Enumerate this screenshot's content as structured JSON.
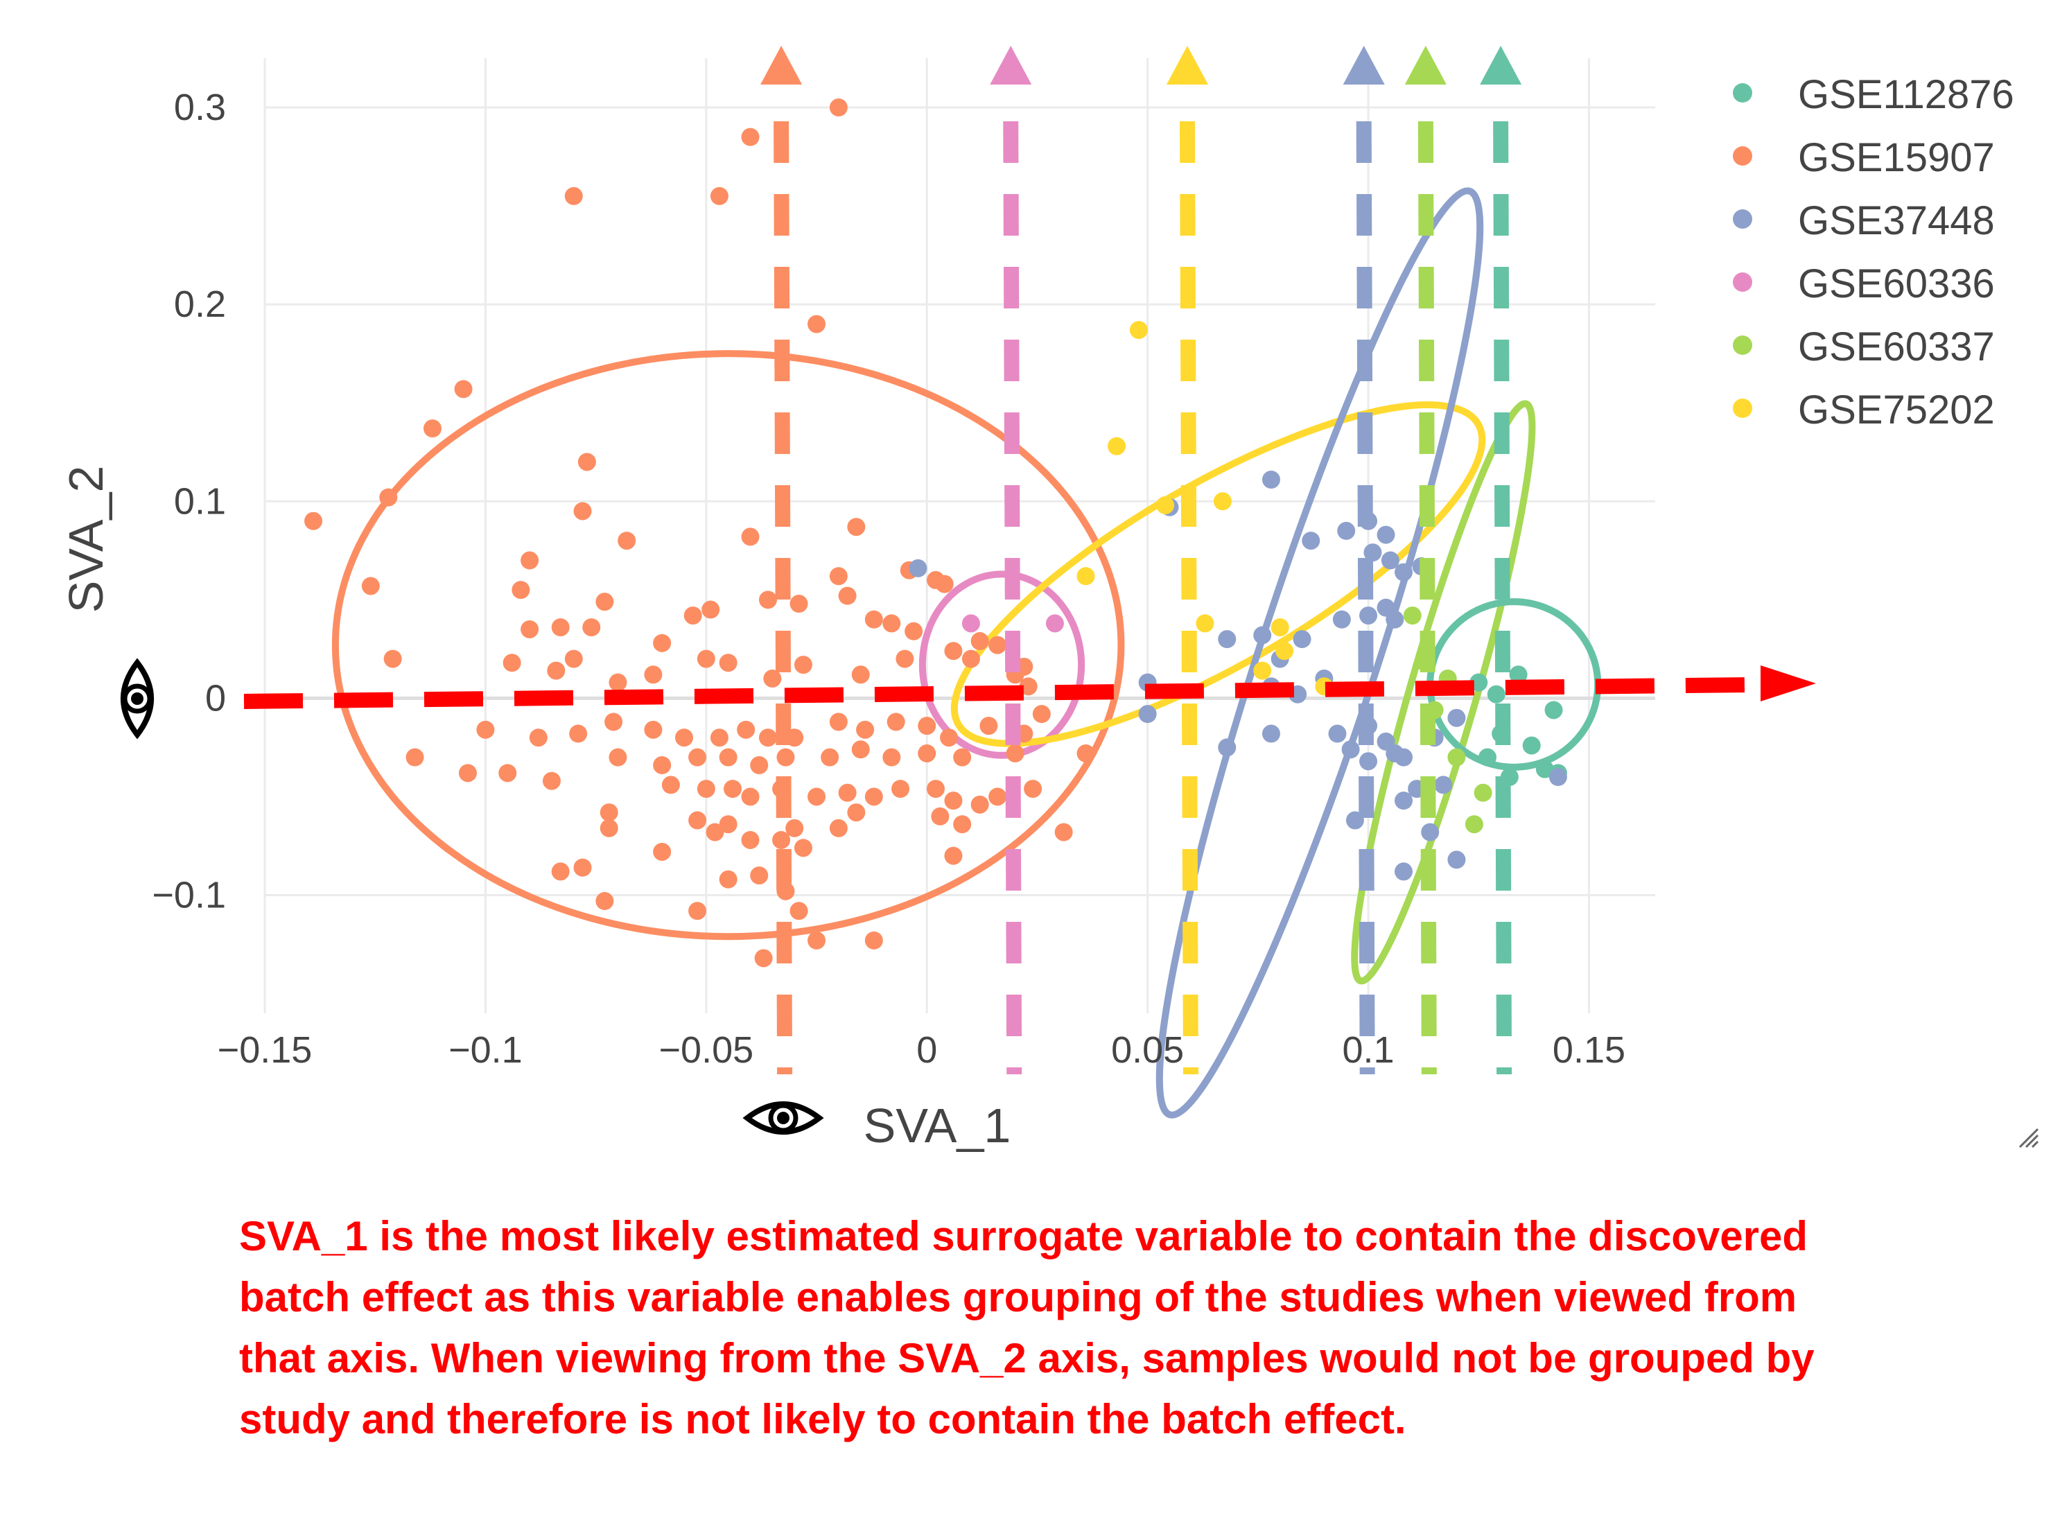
{
  "chart_data": {
    "type": "scatter",
    "xlabel": "SVA_1",
    "ylabel": "SVA_2",
    "xlim": [
      -0.15,
      0.165
    ],
    "ylim": [
      -0.16,
      0.325
    ],
    "x_ticks": [
      -0.15,
      -0.1,
      -0.05,
      0,
      0.05,
      0.1,
      0.15
    ],
    "x_tick_labels": [
      "−0.15",
      "−0.1",
      "−0.05",
      "0",
      "0.05",
      "0.1",
      "0.15"
    ],
    "y_ticks": [
      -0.1,
      0,
      0.1,
      0.2,
      0.3
    ],
    "y_tick_labels": [
      "−0.1",
      "0",
      "0.1",
      "0.2",
      "0.3"
    ],
    "grid": true,
    "legend_position": "top-right",
    "series": [
      {
        "name": "GSE112876",
        "color": "#66c2a5",
        "points": [
          [
            0.134,
            0.012
          ],
          [
            0.142,
            -0.006
          ],
          [
            0.13,
            -0.018
          ],
          [
            0.137,
            -0.024
          ],
          [
            0.127,
            -0.03
          ],
          [
            0.14,
            -0.036
          ],
          [
            0.143,
            -0.038
          ],
          [
            0.132,
            -0.04
          ],
          [
            0.125,
            0.008
          ],
          [
            0.129,
            0.002
          ]
        ]
      },
      {
        "name": "GSE15907",
        "color": "#fc8d62",
        "points": [
          [
            -0.02,
            0.3
          ],
          [
            -0.04,
            0.285
          ],
          [
            -0.08,
            0.255
          ],
          [
            -0.047,
            0.255
          ],
          [
            -0.025,
            0.19
          ],
          [
            -0.105,
            0.157
          ],
          [
            -0.112,
            0.137
          ],
          [
            -0.139,
            0.09
          ],
          [
            -0.122,
            0.102
          ],
          [
            -0.077,
            0.12
          ],
          [
            -0.078,
            0.095
          ],
          [
            -0.068,
            0.08
          ],
          [
            -0.04,
            0.082
          ],
          [
            -0.016,
            0.087
          ],
          [
            -0.126,
            0.057
          ],
          [
            -0.09,
            0.07
          ],
          [
            -0.092,
            0.055
          ],
          [
            -0.073,
            0.049
          ],
          [
            -0.09,
            0.035
          ],
          [
            -0.083,
            0.036
          ],
          [
            -0.076,
            0.036
          ],
          [
            -0.06,
            0.028
          ],
          [
            -0.053,
            0.042
          ],
          [
            -0.049,
            0.045
          ],
          [
            -0.036,
            0.05
          ],
          [
            -0.029,
            0.048
          ],
          [
            -0.018,
            0.052
          ],
          [
            -0.02,
            0.062
          ],
          [
            -0.004,
            0.065
          ],
          [
            0.002,
            0.06
          ],
          [
            0.004,
            0.058
          ],
          [
            -0.012,
            0.04
          ],
          [
            -0.008,
            0.038
          ],
          [
            -0.003,
            0.034
          ],
          [
            -0.121,
            0.02
          ],
          [
            -0.08,
            0.02
          ],
          [
            -0.084,
            0.014
          ],
          [
            -0.094,
            0.018
          ],
          [
            -0.07,
            0.008
          ],
          [
            -0.062,
            0.012
          ],
          [
            -0.05,
            0.02
          ],
          [
            -0.045,
            0.018
          ],
          [
            -0.035,
            0.01
          ],
          [
            -0.028,
            0.017
          ],
          [
            -0.015,
            0.012
          ],
          [
            -0.005,
            0.02
          ],
          [
            0.006,
            0.024
          ],
          [
            0.012,
            0.029
          ],
          [
            0.016,
            0.027
          ],
          [
            0.01,
            0.02
          ],
          [
            0.022,
            0.016
          ],
          [
            0.02,
            0.012
          ],
          [
            0.023,
            0.006
          ],
          [
            -0.1,
            -0.016
          ],
          [
            -0.088,
            -0.02
          ],
          [
            -0.079,
            -0.018
          ],
          [
            -0.071,
            -0.012
          ],
          [
            -0.062,
            -0.016
          ],
          [
            -0.055,
            -0.02
          ],
          [
            -0.047,
            -0.02
          ],
          [
            -0.041,
            -0.016
          ],
          [
            -0.036,
            -0.02
          ],
          [
            -0.03,
            -0.02
          ],
          [
            -0.02,
            -0.012
          ],
          [
            -0.014,
            -0.016
          ],
          [
            -0.007,
            -0.012
          ],
          [
            0.0,
            -0.014
          ],
          [
            0.005,
            -0.02
          ],
          [
            0.014,
            -0.014
          ],
          [
            0.022,
            -0.018
          ],
          [
            -0.116,
            -0.03
          ],
          [
            -0.104,
            -0.038
          ],
          [
            -0.095,
            -0.038
          ],
          [
            -0.085,
            -0.042
          ],
          [
            -0.07,
            -0.03
          ],
          [
            -0.06,
            -0.034
          ],
          [
            -0.052,
            -0.03
          ],
          [
            -0.045,
            -0.03
          ],
          [
            -0.038,
            -0.034
          ],
          [
            -0.032,
            -0.03
          ],
          [
            -0.022,
            -0.03
          ],
          [
            -0.015,
            -0.026
          ],
          [
            -0.008,
            -0.03
          ],
          [
            0.0,
            -0.028
          ],
          [
            0.008,
            -0.03
          ],
          [
            0.02,
            -0.028
          ],
          [
            0.036,
            -0.028
          ],
          [
            -0.058,
            -0.044
          ],
          [
            -0.05,
            -0.046
          ],
          [
            -0.044,
            -0.046
          ],
          [
            -0.04,
            -0.05
          ],
          [
            -0.033,
            -0.046
          ],
          [
            -0.025,
            -0.05
          ],
          [
            -0.018,
            -0.048
          ],
          [
            -0.012,
            -0.05
          ],
          [
            -0.006,
            -0.046
          ],
          [
            0.002,
            -0.046
          ],
          [
            0.006,
            -0.052
          ],
          [
            0.012,
            -0.054
          ],
          [
            0.016,
            -0.05
          ],
          [
            0.024,
            -0.046
          ],
          [
            -0.072,
            -0.058
          ],
          [
            -0.052,
            -0.062
          ],
          [
            -0.045,
            -0.064
          ],
          [
            -0.03,
            -0.066
          ],
          [
            -0.02,
            -0.066
          ],
          [
            -0.016,
            -0.058
          ],
          [
            0.003,
            -0.06
          ],
          [
            0.008,
            -0.064
          ],
          [
            -0.072,
            -0.066
          ],
          [
            -0.048,
            -0.068
          ],
          [
            -0.04,
            -0.072
          ],
          [
            -0.033,
            -0.072
          ],
          [
            -0.06,
            -0.078
          ],
          [
            -0.028,
            -0.076
          ],
          [
            -0.083,
            -0.088
          ],
          [
            -0.078,
            -0.086
          ],
          [
            -0.045,
            -0.092
          ],
          [
            -0.038,
            -0.09
          ],
          [
            -0.032,
            -0.098
          ],
          [
            -0.073,
            -0.103
          ],
          [
            -0.052,
            -0.108
          ],
          [
            -0.029,
            -0.108
          ],
          [
            -0.025,
            -0.123
          ],
          [
            -0.012,
            -0.123
          ],
          [
            -0.037,
            -0.132
          ],
          [
            0.006,
            -0.08
          ],
          [
            0.031,
            -0.068
          ],
          [
            0.026,
            -0.008
          ]
        ]
      },
      {
        "name": "GSE37448",
        "color": "#8da0cb",
        "points": [
          [
            -0.002,
            0.066
          ],
          [
            0.078,
            0.111
          ],
          [
            0.055,
            0.097
          ],
          [
            0.1,
            0.09
          ],
          [
            0.095,
            0.085
          ],
          [
            0.104,
            0.083
          ],
          [
            0.087,
            0.08
          ],
          [
            0.101,
            0.074
          ],
          [
            0.105,
            0.07
          ],
          [
            0.112,
            0.067
          ],
          [
            0.108,
            0.064
          ],
          [
            0.104,
            0.046
          ],
          [
            0.106,
            0.04
          ],
          [
            0.1,
            0.042
          ],
          [
            0.094,
            0.04
          ],
          [
            0.085,
            0.03
          ],
          [
            0.076,
            0.032
          ],
          [
            0.068,
            0.03
          ],
          [
            0.08,
            0.02
          ],
          [
            0.09,
            0.01
          ],
          [
            0.084,
            0.002
          ],
          [
            0.078,
            0.006
          ],
          [
            0.05,
            0.008
          ],
          [
            0.05,
            -0.008
          ],
          [
            0.1,
            -0.014
          ],
          [
            0.093,
            -0.018
          ],
          [
            0.078,
            -0.018
          ],
          [
            0.068,
            -0.025
          ],
          [
            0.104,
            -0.022
          ],
          [
            0.1,
            -0.032
          ],
          [
            0.096,
            -0.026
          ],
          [
            0.106,
            -0.028
          ],
          [
            0.108,
            -0.03
          ],
          [
            0.12,
            -0.01
          ],
          [
            0.115,
            -0.02
          ],
          [
            0.108,
            -0.052
          ],
          [
            0.111,
            -0.046
          ],
          [
            0.117,
            -0.044
          ],
          [
            0.097,
            -0.062
          ],
          [
            0.114,
            -0.068
          ],
          [
            0.12,
            -0.082
          ],
          [
            0.108,
            -0.088
          ],
          [
            0.143,
            -0.04
          ]
        ]
      },
      {
        "name": "GSE60336",
        "color": "#e78ac3",
        "points": [
          [
            0.01,
            0.038
          ],
          [
            0.029,
            0.038
          ]
        ]
      },
      {
        "name": "GSE60337",
        "color": "#a6d854",
        "points": [
          [
            0.11,
            0.042
          ],
          [
            0.113,
            0.018
          ],
          [
            0.118,
            0.01
          ],
          [
            0.115,
            -0.006
          ],
          [
            0.12,
            -0.03
          ],
          [
            0.126,
            -0.048
          ],
          [
            0.124,
            -0.064
          ]
        ]
      },
      {
        "name": "GSE75202",
        "color": "#ffd92f",
        "points": [
          [
            0.048,
            0.187
          ],
          [
            0.043,
            0.128
          ],
          [
            0.054,
            0.098
          ],
          [
            0.067,
            0.1
          ],
          [
            0.036,
            0.062
          ],
          [
            0.063,
            0.038
          ],
          [
            0.08,
            0.036
          ],
          [
            0.081,
            0.024
          ],
          [
            0.076,
            0.014
          ],
          [
            0.09,
            0.006
          ]
        ]
      }
    ],
    "ellipses": [
      {
        "color": "#fc8d62",
        "center": [
          -0.045,
          0.027
        ],
        "rx": 0.089,
        "ry": 0.148
      },
      {
        "color": "#e78ac3",
        "center": [
          0.017,
          0.017
        ],
        "rx": 0.018,
        "ry": 0.046
      },
      {
        "color": "#ffd92f",
        "center": [
          0.066,
          0.063
        ],
        "rx": 0.068,
        "ry": 0.046,
        "angle": 30
      },
      {
        "color": "#8da0cb",
        "center": [
          0.089,
          0.023
        ],
        "rx": 0.11,
        "ry": 0.03,
        "angle": 72
      },
      {
        "color": "#a6d854",
        "center": [
          0.117,
          0.003
        ],
        "rx": 0.068,
        "ry": 0.017,
        "angle": 74
      },
      {
        "color": "#66c2a5",
        "center": [
          0.133,
          0.007
        ],
        "rx": 0.019,
        "ry": 0.042
      }
    ],
    "marker_lines": [
      {
        "color": "#fc8d62",
        "x": -0.033
      },
      {
        "color": "#e78ac3",
        "x": 0.019
      },
      {
        "color": "#ffd92f",
        "x": 0.059
      },
      {
        "color": "#8da0cb",
        "x": 0.099
      },
      {
        "color": "#a6d854",
        "x": 0.113
      },
      {
        "color": "#66c2a5",
        "x": 0.13
      }
    ]
  },
  "annotation": {
    "caption": "SVA_1 is the most likely estimated surrogate variable to contain the discovered batch effect as this variable enables grouping of the studies when viewed from that axis. When viewing from the SVA_2 axis, samples would not be grouped by study and therefore is not likely to contain the batch effect.",
    "arrow_color": "#ff0000",
    "icons": [
      "eye-icon",
      "eye-icon"
    ]
  }
}
